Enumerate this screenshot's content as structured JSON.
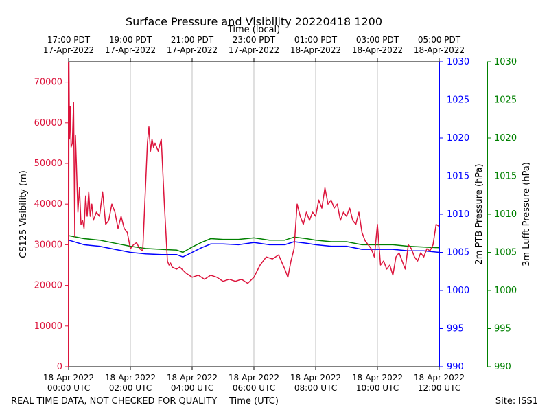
{
  "chart_data": {
    "type": "line",
    "title": "Surface Pressure and Visibility 20220418 1200",
    "top_axis_label": "Time (local)",
    "bottom_axis_label": "Time (UTC)",
    "footer_left": "REAL TIME DATA, NOT CHECKED FOR QUALITY",
    "footer_right": "Site: ISS1",
    "xlim_hours_utc": [
      0,
      12
    ],
    "x_ticks_utc": [
      {
        "h": 0,
        "date": "18-Apr-2022",
        "time": "00:00 UTC"
      },
      {
        "h": 2,
        "date": "18-Apr-2022",
        "time": "02:00 UTC"
      },
      {
        "h": 4,
        "date": "18-Apr-2022",
        "time": "04:00 UTC"
      },
      {
        "h": 6,
        "date": "18-Apr-2022",
        "time": "06:00 UTC"
      },
      {
        "h": 8,
        "date": "18-Apr-2022",
        "time": "08:00 UTC"
      },
      {
        "h": 10,
        "date": "18-Apr-2022",
        "time": "10:00 UTC"
      },
      {
        "h": 12,
        "date": "18-Apr-2022",
        "time": "12:00 UTC"
      }
    ],
    "x_ticks_local": [
      {
        "h": 0,
        "time": "17:00 PDT",
        "date": "17-Apr-2022"
      },
      {
        "h": 2,
        "time": "19:00 PDT",
        "date": "17-Apr-2022"
      },
      {
        "h": 4,
        "time": "21:00 PDT",
        "date": "17-Apr-2022"
      },
      {
        "h": 6,
        "time": "23:00 PDT",
        "date": "17-Apr-2022"
      },
      {
        "h": 8,
        "time": "01:00 PDT",
        "date": "18-Apr-2022"
      },
      {
        "h": 10,
        "time": "03:00 PDT",
        "date": "18-Apr-2022"
      },
      {
        "h": 12,
        "time": "05:00 PDT",
        "date": "18-Apr-2022"
      }
    ],
    "axes": {
      "visibility": {
        "label": "CS125 Visibility (m)",
        "color": "#dc143c",
        "ylim": [
          0,
          75000
        ],
        "ticks": [
          0,
          10000,
          20000,
          30000,
          40000,
          50000,
          60000,
          70000
        ]
      },
      "ptb": {
        "label": "2m PTB Pressure (hPa)",
        "color": "#0000ff",
        "ylim": [
          990,
          1030
        ],
        "ticks": [
          990,
          995,
          1000,
          1005,
          1010,
          1015,
          1020,
          1025,
          1030
        ]
      },
      "lufft": {
        "label": "3m Lufft Pressure (hPa)",
        "color": "#008000",
        "ylim": [
          990,
          1030
        ],
        "ticks": [
          990,
          995,
          1000,
          1005,
          1010,
          1015,
          1020,
          1025,
          1030
        ]
      }
    },
    "series": [
      {
        "name": "CS125 Visibility",
        "axis": "visibility",
        "color": "#dc143c",
        "x": [
          0,
          0.01,
          0.03,
          0.05,
          0.08,
          0.12,
          0.16,
          0.2,
          0.22,
          0.25,
          0.3,
          0.35,
          0.4,
          0.45,
          0.5,
          0.55,
          0.6,
          0.65,
          0.7,
          0.75,
          0.8,
          0.9,
          1.0,
          1.1,
          1.2,
          1.3,
          1.4,
          1.5,
          1.6,
          1.7,
          1.8,
          1.9,
          2.0,
          2.1,
          2.2,
          2.3,
          2.4,
          2.5,
          2.55,
          2.6,
          2.65,
          2.7,
          2.75,
          2.8,
          2.9,
          3.0,
          3.1,
          3.2,
          3.25,
          3.3,
          3.35,
          3.5,
          3.6,
          3.8,
          4.0,
          4.2,
          4.4,
          4.6,
          4.8,
          5.0,
          5.2,
          5.4,
          5.6,
          5.8,
          6.0,
          6.2,
          6.4,
          6.6,
          6.8,
          7.0,
          7.1,
          7.2,
          7.3,
          7.4,
          7.5,
          7.6,
          7.7,
          7.8,
          7.9,
          8.0,
          8.1,
          8.2,
          8.3,
          8.4,
          8.5,
          8.6,
          8.7,
          8.8,
          8.9,
          9.0,
          9.1,
          9.2,
          9.3,
          9.4,
          9.5,
          9.6,
          9.7,
          9.8,
          9.9,
          10.0,
          10.1,
          10.2,
          10.3,
          10.4,
          10.5,
          10.6,
          10.7,
          10.8,
          10.9,
          11.0,
          11.1,
          11.2,
          11.3,
          11.4,
          11.5,
          11.6,
          11.7,
          11.8,
          11.9,
          12.0
        ],
        "y": [
          0,
          75000,
          56000,
          64000,
          54000,
          55000,
          65000,
          32000,
          57000,
          50000,
          38000,
          44000,
          35000,
          36000,
          34000,
          42000,
          37000,
          43000,
          37000,
          40000,
          36000,
          38000,
          37000,
          43000,
          35000,
          36000,
          40000,
          38000,
          34000,
          37000,
          34000,
          33000,
          29000,
          30000,
          30500,
          29000,
          28500,
          46000,
          55000,
          59000,
          53000,
          56000,
          54000,
          55000,
          53000,
          56000,
          40000,
          26000,
          25000,
          25500,
          24500,
          24000,
          24500,
          23000,
          22000,
          22500,
          21500,
          22500,
          22000,
          21000,
          21500,
          21000,
          21500,
          20500,
          22000,
          25000,
          27000,
          26500,
          27500,
          24000,
          22000,
          26000,
          29000,
          40000,
          37000,
          35000,
          38000,
          36000,
          38000,
          37000,
          41000,
          39000,
          44000,
          40000,
          41000,
          39000,
          40000,
          36000,
          38000,
          37000,
          39000,
          36000,
          35000,
          38000,
          33000,
          31000,
          30000,
          29000,
          27000,
          35000,
          25000,
          26000,
          24000,
          25000,
          22500,
          27000,
          28000,
          26000,
          24000,
          30000,
          29000,
          27000,
          26000,
          28000,
          27000,
          29000,
          28500,
          30000,
          35000,
          34500
        ]
      },
      {
        "name": "2m PTB Pressure",
        "axis": "ptb",
        "color": "#0000ff",
        "x": [
          0,
          0.5,
          1.0,
          1.5,
          2.0,
          2.5,
          3.0,
          3.5,
          3.7,
          4.0,
          4.3,
          4.6,
          5.0,
          5.5,
          6.0,
          6.5,
          7.0,
          7.3,
          7.7,
          8.0,
          8.5,
          9.0,
          9.5,
          10.0,
          10.5,
          11.0,
          11.5,
          12.0
        ],
        "y": [
          1006.6,
          1006.0,
          1005.8,
          1005.4,
          1005.0,
          1004.8,
          1004.7,
          1004.7,
          1004.4,
          1005.0,
          1005.6,
          1006.1,
          1006.1,
          1006.0,
          1006.3,
          1006.0,
          1006.0,
          1006.4,
          1006.2,
          1006.0,
          1005.8,
          1005.8,
          1005.4,
          1005.4,
          1005.4,
          1005.2,
          1005.2,
          1005.0
        ]
      },
      {
        "name": "3m Lufft Pressure",
        "axis": "lufft",
        "color": "#008000",
        "x": [
          0,
          0.5,
          1.0,
          1.5,
          2.0,
          2.5,
          3.0,
          3.5,
          3.7,
          4.0,
          4.3,
          4.6,
          5.0,
          5.5,
          6.0,
          6.5,
          7.0,
          7.3,
          7.7,
          8.0,
          8.5,
          9.0,
          9.5,
          10.0,
          10.5,
          11.0,
          11.5,
          12.0
        ],
        "y": [
          1007.2,
          1006.8,
          1006.6,
          1006.2,
          1005.8,
          1005.5,
          1005.4,
          1005.3,
          1005.0,
          1005.7,
          1006.3,
          1006.8,
          1006.7,
          1006.7,
          1006.9,
          1006.6,
          1006.6,
          1007.0,
          1006.8,
          1006.6,
          1006.4,
          1006.4,
          1006.0,
          1006.0,
          1006.0,
          1005.8,
          1005.7,
          1005.6
        ]
      }
    ]
  }
}
